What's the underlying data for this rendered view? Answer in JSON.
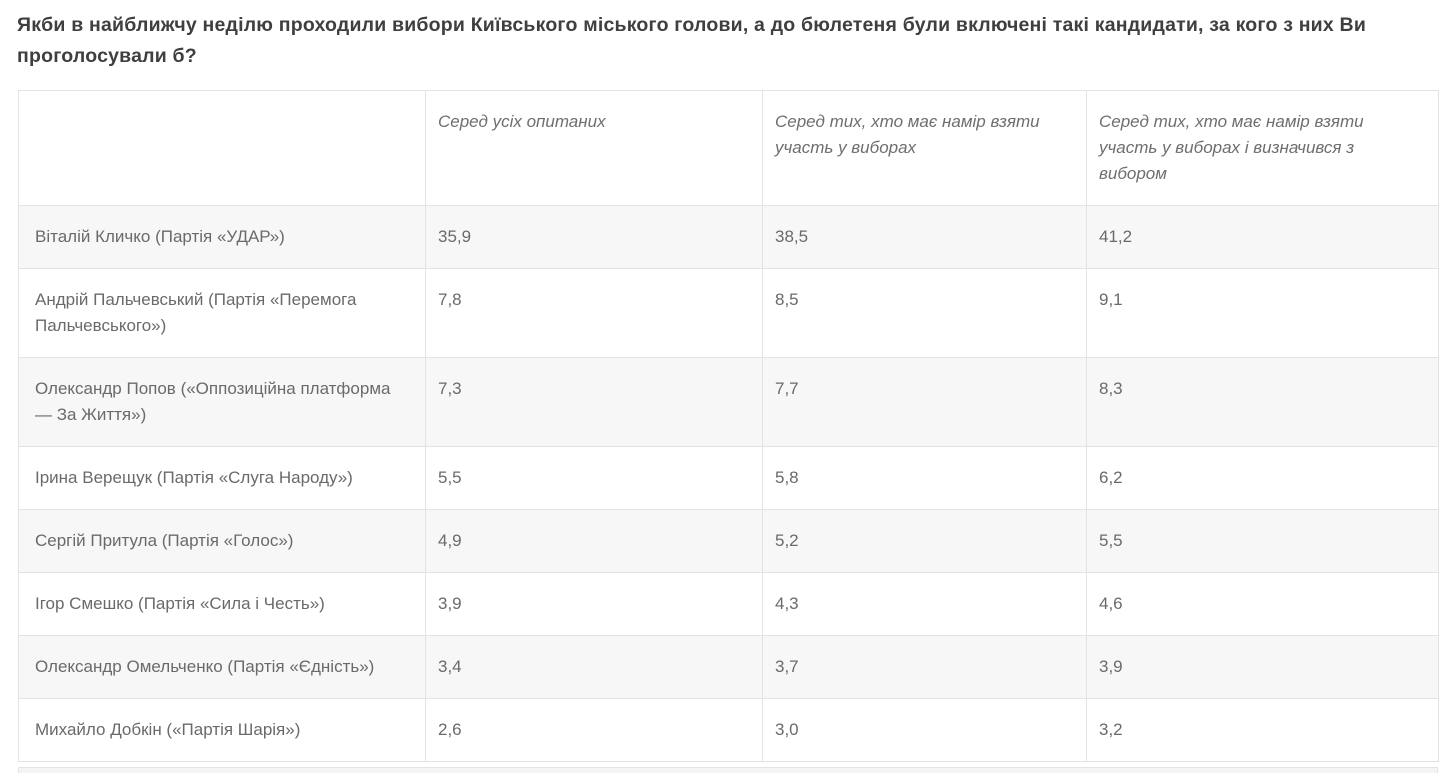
{
  "page": {
    "title": "Якби в найближчу неділю проходили вибори Київського міського голови, а до бюлетеня були включені такі кандидати, за кого з них Ви проголосували б?"
  },
  "table": {
    "columns": [
      "",
      "Серед усіх опитаних",
      "Серед тих, хто має намір взяти участь у виборах",
      "Серед тих, хто має намір взяти участь у виборах і визначився з вибором"
    ],
    "rows": [
      {
        "candidate": "Віталій Кличко (Партія «УДАР»)",
        "all": "35,9",
        "intend": "38,5",
        "decided": "41,2"
      },
      {
        "candidate": "Андрій Пальчевський (Партія «Перемога Пальчевського»)",
        "all": "7,8",
        "intend": "8,5",
        "decided": "9,1"
      },
      {
        "candidate": "Олександр Попов («Оппозиційна платформа — За Життя»)",
        "all": "7,3",
        "intend": "7,7",
        "decided": "8,3"
      },
      {
        "candidate": "Ірина Верещук (Партія «Слуга Народу»)",
        "all": "5,5",
        "intend": "5,8",
        "decided": "6,2"
      },
      {
        "candidate": "Сергій Притула (Партія «Голос»)",
        "all": "4,9",
        "intend": "5,2",
        "decided": "5,5"
      },
      {
        "candidate": "Ігор Смешко (Партія «Сила і Честь»)",
        "all": "3,9",
        "intend": "4,3",
        "decided": "4,6"
      },
      {
        "candidate": "Олександр Омельченко (Партія «Єдність»)",
        "all": "3,4",
        "intend": "3,7",
        "decided": "3,9"
      },
      {
        "candidate": "Михайло Добкін («Партія Шарія»)",
        "all": "2,6",
        "intend": "3,0",
        "decided": "3,2"
      }
    ]
  },
  "colors": {
    "title_text": "#3f3f3f",
    "cell_text": "#6a6a6a",
    "row_alt_background": "#f7f7f7",
    "border": "#e3e3e3",
    "page_background": "#ffffff"
  }
}
